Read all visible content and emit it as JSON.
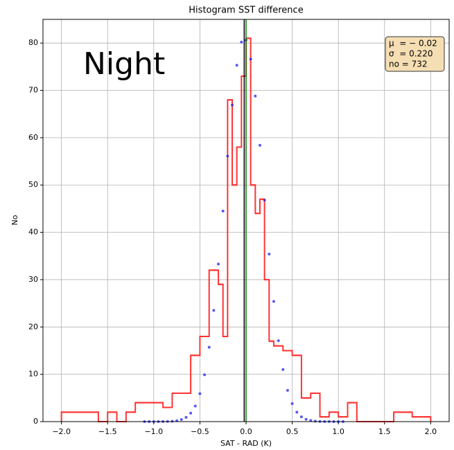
{
  "chart_data": {
    "type": "histogram",
    "title": "Histogram SST difference",
    "xlabel": "SAT - RAD (K)",
    "ylabel": "No",
    "annotation": "Night",
    "stats_box": [
      "μ  = − 0.02",
      "σ  = 0.220",
      "no = 732"
    ],
    "xlim": [
      -2.2,
      2.2
    ],
    "ylim": [
      0,
      85
    ],
    "xticks": [
      {
        "value": -2,
        "label": "−2.0"
      },
      {
        "value": -1.5,
        "label": "−1.5"
      },
      {
        "value": -1,
        "label": "−1.0"
      },
      {
        "value": -0.5,
        "label": "−0.5"
      },
      {
        "value": 0,
        "label": "0.0"
      },
      {
        "value": 0.5,
        "label": "0.5"
      },
      {
        "value": 1,
        "label": "1.0"
      },
      {
        "value": 1.5,
        "label": "1.5"
      },
      {
        "value": 2,
        "label": "2.0"
      }
    ],
    "yticks": [
      0,
      10,
      20,
      30,
      40,
      50,
      60,
      70,
      80
    ],
    "grid": true,
    "color": "#ff3333",
    "bins": [
      -2.0,
      -1.95,
      -1.9,
      -1.85,
      -1.8,
      -1.75,
      -1.7,
      -1.65,
      -1.6,
      -1.55,
      -1.5,
      -1.45,
      -1.4,
      -1.35,
      -1.3,
      -1.25,
      -1.2,
      -1.15,
      -1.1,
      -1.05,
      -1.0,
      -0.95,
      -0.9,
      -0.85,
      -0.8,
      -0.75,
      -0.7,
      -0.65,
      -0.6,
      -0.55,
      -0.5,
      -0.45,
      -0.4,
      -0.35,
      -0.3,
      -0.25,
      -0.2,
      -0.15,
      -0.1,
      -0.05,
      0.0,
      0.05,
      0.1,
      0.15,
      0.2,
      0.25,
      0.3,
      0.35,
      0.4,
      0.45,
      0.5,
      0.55,
      0.6,
      0.65,
      0.7,
      0.75,
      0.8,
      0.85,
      0.9,
      0.95,
      1.0,
      1.05,
      1.1,
      1.15,
      1.2,
      1.25,
      1.3,
      1.35,
      1.4,
      1.45,
      1.5,
      1.55,
      1.6,
      1.65,
      1.7,
      1.75,
      1.8,
      1.85,
      1.9,
      1.95,
      2.0
    ],
    "counts": [
      2,
      2,
      2,
      2,
      2,
      2,
      2,
      2,
      0,
      0,
      2,
      2,
      0,
      0,
      2,
      2,
      4,
      4,
      4,
      4,
      4,
      4,
      3,
      3,
      6,
      6,
      6,
      6,
      14,
      14,
      18,
      18,
      32,
      32,
      29,
      18,
      68,
      50,
      58,
      73,
      81,
      50,
      44,
      47,
      30,
      17,
      16,
      16,
      15,
      15,
      14,
      14,
      5,
      5,
      6,
      6,
      1,
      1,
      2,
      2,
      1,
      1,
      4,
      4,
      0,
      0,
      0,
      0,
      0,
      0,
      0,
      0,
      2,
      2,
      2,
      2,
      1,
      1,
      1,
      1
    ],
    "curve": {
      "color": "#2222ee",
      "x": [
        -1.1,
        -1.05,
        -1.0,
        -0.95,
        -0.9,
        -0.85,
        -0.8,
        -0.75,
        -0.7,
        -0.65,
        -0.6,
        -0.55,
        -0.5,
        -0.45,
        -0.4,
        -0.35,
        -0.3,
        -0.25,
        -0.2,
        -0.15,
        -0.1,
        -0.05,
        0.0,
        0.05,
        0.1,
        0.15,
        0.2,
        0.25,
        0.3,
        0.35,
        0.4,
        0.45,
        0.5,
        0.55,
        0.6,
        0.65,
        0.7,
        0.75,
        0.8,
        0.85,
        0.9,
        0.95,
        1.0,
        1.05
      ],
      "values": [
        0,
        0,
        0,
        0,
        0.01,
        0.03,
        0.08,
        0.19,
        0.43,
        0.9,
        1.8,
        3.3,
        5.9,
        9.9,
        15.7,
        23.5,
        33.3,
        44.5,
        56.1,
        66.9,
        75.3,
        80.2,
        80.6,
        76.6,
        68.8,
        58.4,
        46.8,
        35.4,
        25.4,
        17.1,
        11.0,
        6.6,
        3.8,
        2.0,
        1.0,
        0.5,
        0.23,
        0.1,
        0.04,
        0.02,
        0.01,
        0,
        0,
        0
      ]
    },
    "vlines": [
      {
        "x": -0.02,
        "color": "#000000"
      },
      {
        "x": 0,
        "color": "#008000"
      }
    ]
  }
}
